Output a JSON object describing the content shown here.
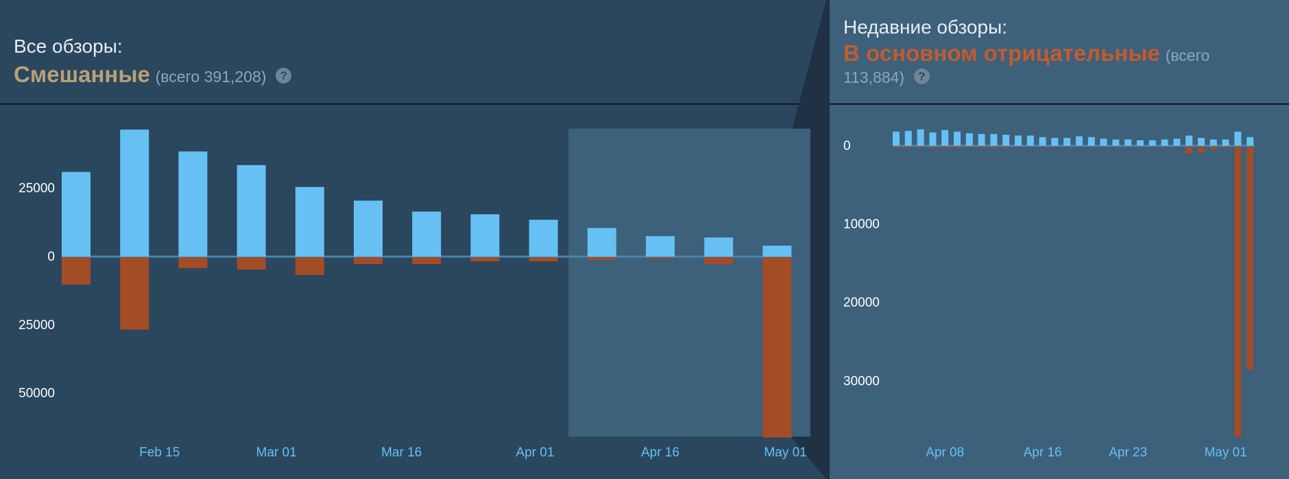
{
  "colors": {
    "background_left": "#2a475e",
    "background_right": "#3d607b",
    "positive": "#66c0f4",
    "negative": "#a34c25",
    "mixed": "#b9a074",
    "mostly_negative": "#c35c2c",
    "axis_text": "#ffffff",
    "date_text": "#66c0f4"
  },
  "all_reviews": {
    "heading": "Все обзоры:",
    "rating": "Смешанные",
    "total": "(всего 391,208)",
    "help_icon": "?"
  },
  "recent_reviews": {
    "heading": "Недавние обзоры:",
    "rating": "В основном отрицательные",
    "total_line1": "(всего",
    "total_line2": "113,884)",
    "help_icon": "?"
  },
  "chart_data": [
    {
      "type": "bar",
      "title": "Все обзоры",
      "x": [
        "2023-02-05",
        "2023-02-12",
        "2023-02-19",
        "2023-02-26",
        "2023-03-05",
        "2023-03-12",
        "2023-03-19",
        "2023-03-26",
        "2023-04-02",
        "2023-04-09",
        "2023-04-16",
        "2023-04-23",
        "2023-04-30"
      ],
      "x_tick_labels": [
        "Feb 15",
        "Mar 01",
        "Mar 16",
        "Apr 01",
        "Apr 16",
        "May 01"
      ],
      "x_tick_dates": [
        "2023-02-15",
        "2023-03-01",
        "2023-03-16",
        "2023-04-01",
        "2023-04-16",
        "2023-05-01"
      ],
      "y_tick_labels": [
        "25000",
        "0",
        "25000",
        "50000"
      ],
      "y_tick_values": [
        25000,
        0,
        -25000,
        -50000
      ],
      "ylim": [
        -66000,
        47000
      ],
      "highlight_range": [
        "2023-04-05",
        "2023-05-04"
      ],
      "series": [
        {
          "name": "positive",
          "values": [
            31000,
            46500,
            38500,
            33500,
            25500,
            20500,
            16500,
            15500,
            13500,
            10500,
            7500,
            7000,
            4000
          ]
        },
        {
          "name": "negative",
          "values": [
            -10000,
            -26500,
            -4000,
            -4500,
            -6500,
            -2500,
            -2500,
            -1500,
            -1500,
            -1000,
            -500,
            -2500,
            -66000
          ]
        }
      ]
    },
    {
      "type": "bar",
      "title": "Недавние обзоры",
      "x": [
        "2023-04-04",
        "2023-04-05",
        "2023-04-06",
        "2023-04-07",
        "2023-04-08",
        "2023-04-09",
        "2023-04-10",
        "2023-04-11",
        "2023-04-12",
        "2023-04-13",
        "2023-04-14",
        "2023-04-15",
        "2023-04-16",
        "2023-04-17",
        "2023-04-18",
        "2023-04-19",
        "2023-04-20",
        "2023-04-21",
        "2023-04-22",
        "2023-04-23",
        "2023-04-24",
        "2023-04-25",
        "2023-04-26",
        "2023-04-27",
        "2023-04-28",
        "2023-04-29",
        "2023-04-30",
        "2023-05-01",
        "2023-05-02",
        "2023-05-03"
      ],
      "x_tick_labels": [
        "Apr 08",
        "Apr 16",
        "Apr 23",
        "May 01"
      ],
      "x_tick_dates": [
        "2023-04-08",
        "2023-04-16",
        "2023-04-23",
        "2023-05-01"
      ],
      "y_tick_labels": [
        "0",
        "10000",
        "20000",
        "30000"
      ],
      "y_tick_values": [
        0,
        -10000,
        -20000,
        -30000
      ],
      "ylim": [
        -37500,
        2200
      ],
      "series": [
        {
          "name": "positive",
          "values": [
            1800,
            1900,
            2100,
            1700,
            2000,
            1800,
            1600,
            1500,
            1500,
            1400,
            1300,
            1300,
            1100,
            1000,
            1000,
            1200,
            1100,
            900,
            800,
            800,
            700,
            700,
            800,
            900,
            1300,
            1000,
            800,
            800,
            1800,
            1100
          ]
        },
        {
          "name": "negative",
          "values": [
            -200,
            -200,
            -200,
            -200,
            -200,
            -200,
            -200,
            -200,
            -200,
            -200,
            -100,
            -100,
            -100,
            -100,
            -100,
            -100,
            -100,
            -100,
            -100,
            -100,
            -100,
            -100,
            -100,
            -100,
            -900,
            -800,
            -400,
            -200,
            -37000,
            -28500
          ]
        }
      ]
    }
  ]
}
